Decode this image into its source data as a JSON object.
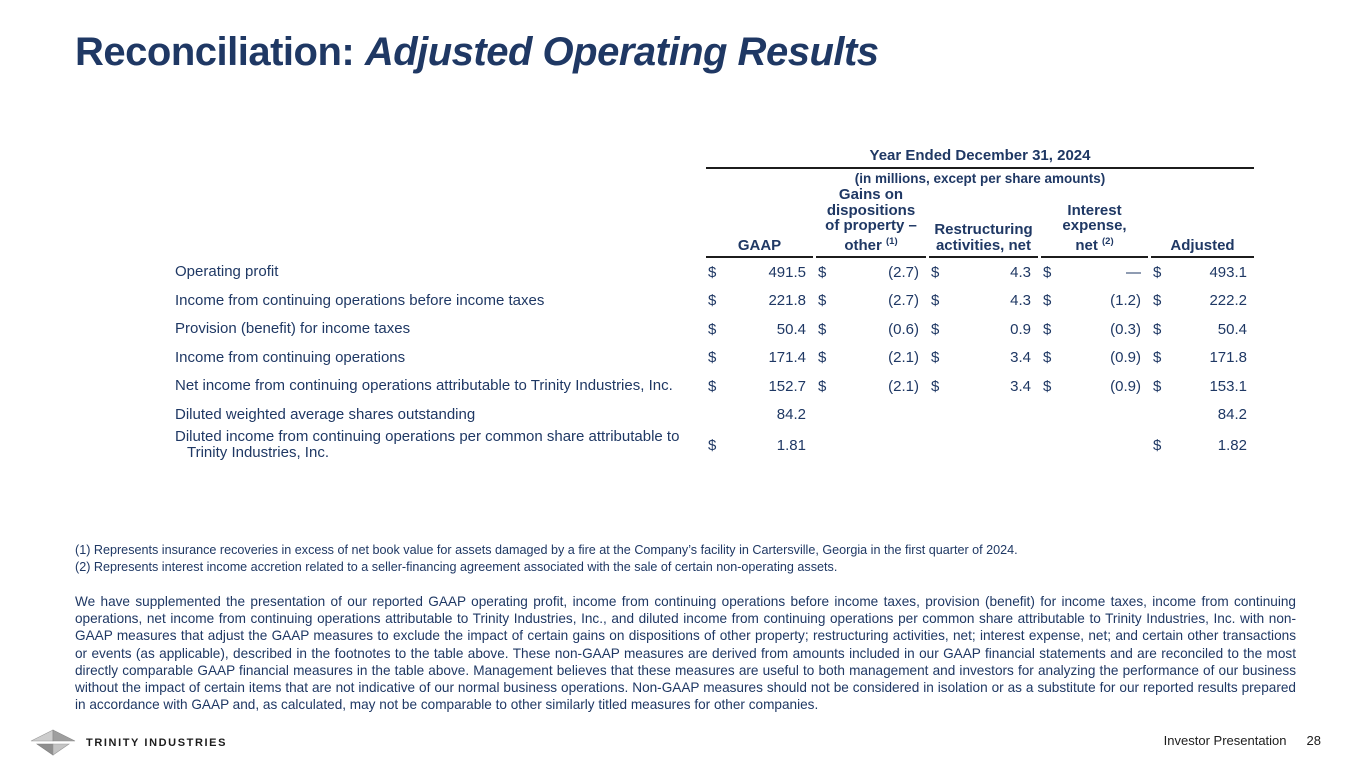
{
  "title": {
    "prefix": "Reconciliation: ",
    "emphasis": "Adjusted Operating Results"
  },
  "table": {
    "period_header": "Year Ended December 31, 2024",
    "units_note": "(in millions, except per share amounts)",
    "columns": [
      {
        "lines": [
          "GAAP"
        ],
        "footnote": ""
      },
      {
        "lines": [
          "Gains on",
          "dispositions",
          "of property –",
          "other"
        ],
        "footnote": "(1)"
      },
      {
        "lines": [
          "Restructuring",
          "activities, net"
        ],
        "footnote": ""
      },
      {
        "lines": [
          "Interest",
          "expense,",
          "net"
        ],
        "footnote": "(2)"
      },
      {
        "lines": [
          "Adjusted"
        ],
        "footnote": ""
      }
    ],
    "rows": [
      {
        "label": "Operating profit",
        "cells": [
          {
            "sym": "$",
            "val": "491.5"
          },
          {
            "sym": "$",
            "val": "(2.7)"
          },
          {
            "sym": "$",
            "val": "4.3"
          },
          {
            "sym": "$",
            "val": "—"
          },
          {
            "sym": "$",
            "val": "493.1"
          }
        ]
      },
      {
        "label": "Income from continuing operations before income taxes",
        "cells": [
          {
            "sym": "$",
            "val": "221.8"
          },
          {
            "sym": "$",
            "val": "(2.7)"
          },
          {
            "sym": "$",
            "val": "4.3"
          },
          {
            "sym": "$",
            "val": "(1.2)"
          },
          {
            "sym": "$",
            "val": "222.2"
          }
        ]
      },
      {
        "label": "Provision (benefit) for income taxes",
        "cells": [
          {
            "sym": "$",
            "val": "50.4"
          },
          {
            "sym": "$",
            "val": "(0.6)"
          },
          {
            "sym": "$",
            "val": "0.9"
          },
          {
            "sym": "$",
            "val": "(0.3)"
          },
          {
            "sym": "$",
            "val": "50.4"
          }
        ]
      },
      {
        "label": "Income from continuing operations",
        "cells": [
          {
            "sym": "$",
            "val": "171.4"
          },
          {
            "sym": "$",
            "val": "(2.1)"
          },
          {
            "sym": "$",
            "val": "3.4"
          },
          {
            "sym": "$",
            "val": "(0.9)"
          },
          {
            "sym": "$",
            "val": "171.8"
          }
        ]
      },
      {
        "label": "Net income from continuing operations attributable to Trinity Industries, Inc.",
        "cells": [
          {
            "sym": "$",
            "val": "152.7"
          },
          {
            "sym": "$",
            "val": "(2.1)"
          },
          {
            "sym": "$",
            "val": "3.4"
          },
          {
            "sym": "$",
            "val": "(0.9)"
          },
          {
            "sym": "$",
            "val": "153.1"
          }
        ]
      },
      {
        "label": "Diluted weighted average shares outstanding",
        "cells": [
          {
            "sym": "",
            "val": "84.2"
          },
          {
            "sym": "",
            "val": ""
          },
          {
            "sym": "",
            "val": ""
          },
          {
            "sym": "",
            "val": ""
          },
          {
            "sym": "",
            "val": "84.2"
          }
        ]
      },
      {
        "label": "Diluted income from continuing operations per common share attributable to Trinity Industries, Inc.",
        "cells": [
          {
            "sym": "$",
            "val": "1.81"
          },
          {
            "sym": "",
            "val": ""
          },
          {
            "sym": "",
            "val": ""
          },
          {
            "sym": "",
            "val": ""
          },
          {
            "sym": "$",
            "val": "1.82"
          }
        ]
      }
    ]
  },
  "footnotes": [
    "(1) Represents insurance recoveries in excess of net book value for assets damaged by a fire at the Company’s facility in Cartersville, Georgia in the first quarter of 2024.",
    "(2) Represents interest income accretion related to a seller-financing agreement associated with the sale of certain non-operating assets."
  ],
  "disclosure": "We have supplemented the presentation of our reported GAAP operating profit, income from continuing operations before income taxes, provision (benefit) for income taxes, income from continuing operations, net income from continuing operations attributable to Trinity Industries, Inc., and diluted income from continuing operations per common share attributable to Trinity Industries, Inc. with non-GAAP measures that adjust the GAAP measures to exclude the impact of certain gains on dispositions of other property; restructuring activities, net; interest expense, net; and certain other transactions or events (as applicable), described in the footnotes to the table above. These non-GAAP measures are derived from amounts included in our GAAP financial statements and are reconciled to the most directly comparable GAAP financial measures in the table above. Management believes that these measures are useful to both management and investors for analyzing the performance of our business without the impact of certain items that are not indicative of our normal business operations. Non-GAAP measures should not be considered in isolation or as a substitute for our reported results prepared in accordance with GAAP and, as calculated, may not be comparable to other similarly titled measures for other companies.",
  "footer": {
    "brand": "TRINITY INDUSTRIES",
    "label": "Investor Presentation",
    "page": "28"
  },
  "colors": {
    "text_navy": "#1F3864",
    "rule_dark": "#1c1c1c",
    "footer_text": "#1c1c1c"
  }
}
